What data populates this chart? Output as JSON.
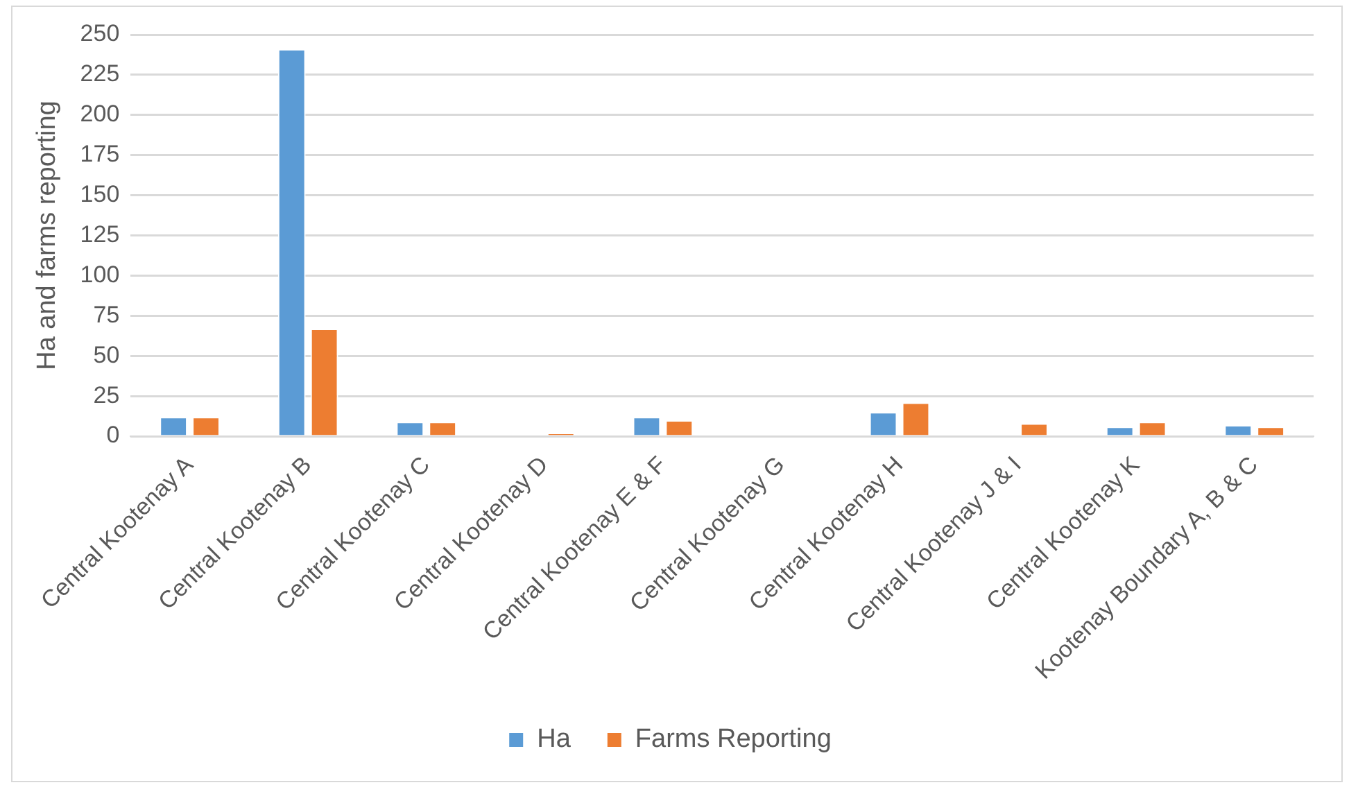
{
  "chart_data": {
    "type": "bar",
    "ylabel": "Ha and farms reporting",
    "categories": [
      "Central Kootenay A",
      "Central Kootenay B",
      "Central Kootenay C",
      "Central Kootenay D",
      "Central Kootenay E & F",
      "Central Kootenay G",
      "Central Kootenay H",
      "Central Kootenay J & I",
      "Central Kootenay K",
      "Kootenay Boundary A, B & C"
    ],
    "series": [
      {
        "name": "Ha",
        "color": "#5b9bd5",
        "values": [
          12,
          241,
          9,
          0,
          12,
          0,
          15,
          0,
          6,
          7
        ]
      },
      {
        "name": "Farms Reporting",
        "color": "#ed7d31",
        "values": [
          12,
          67,
          9,
          2,
          10,
          0,
          21,
          8,
          9,
          6
        ]
      }
    ],
    "ylim": [
      0,
      250
    ],
    "yticks": [
      0,
      25,
      50,
      75,
      100,
      125,
      150,
      175,
      200,
      225,
      250
    ],
    "grid": "y",
    "legend": "bottom"
  }
}
